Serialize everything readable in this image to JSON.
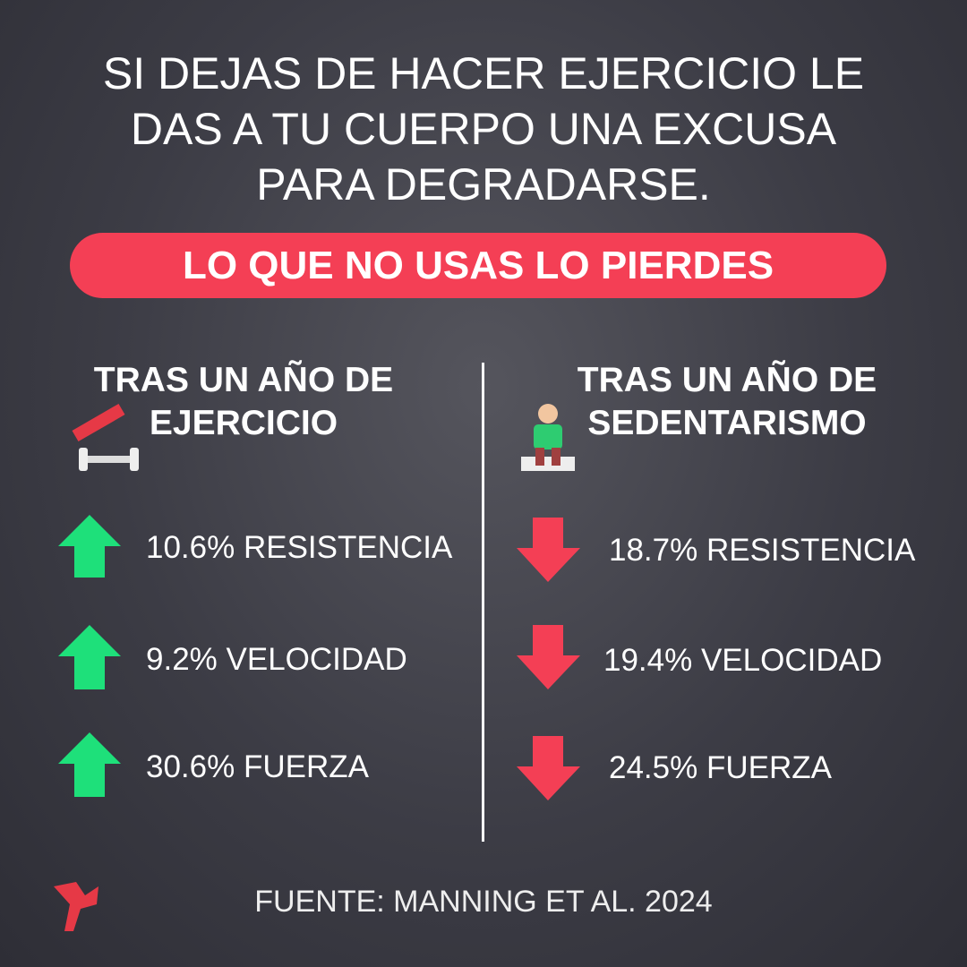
{
  "header": {
    "title_lines": [
      "SI DEJAS DE HACER EJERCICIO LE",
      "DAS A TU CUERPO UNA EXCUSA",
      "PARA DEGRADARSE."
    ],
    "banner": "LO QUE NO USAS LO PIERDES"
  },
  "columns": [
    {
      "heading_lines": [
        "TRAS UN AÑO DE",
        "EJERCICIO"
      ],
      "items": [
        "10.6% RESISTENCIA",
        "9.2% VELOCIDAD",
        "30.6% FUERZA"
      ]
    },
    {
      "heading_lines": [
        "TRAS UN AÑO DE",
        "SEDENTARISMO"
      ],
      "items": [
        "18.7% RESISTENCIA",
        "19.4% VELOCIDAD",
        "24.5% FUERZA"
      ]
    }
  ],
  "footer": {
    "source": "FUENTE: MANNING ET AL. 2024"
  }
}
